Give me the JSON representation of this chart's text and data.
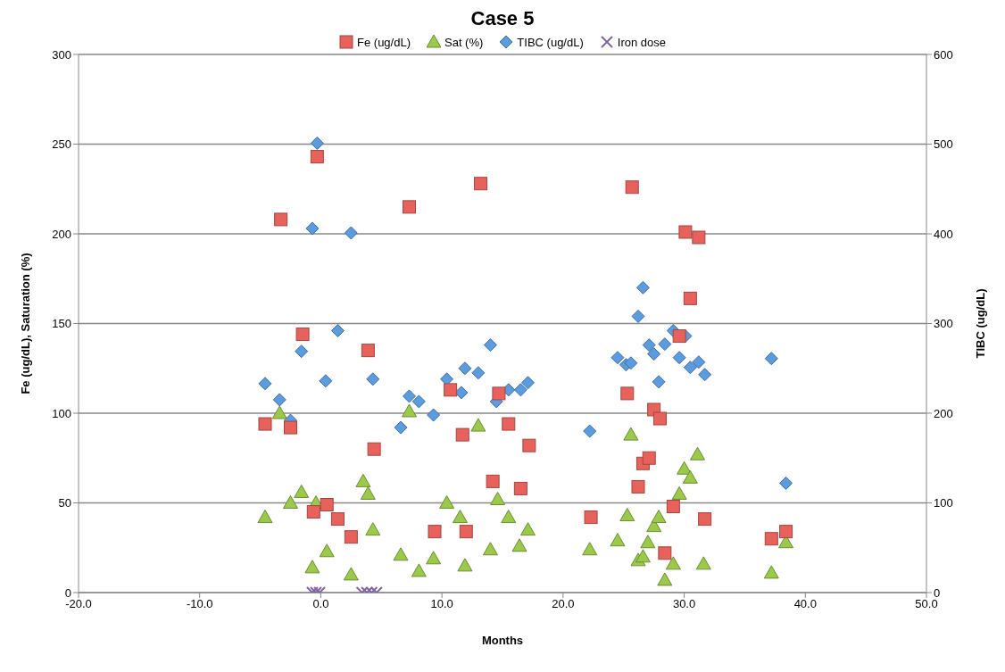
{
  "chart_data": {
    "type": "scatter",
    "title": "Case 5",
    "xlabel": "Months",
    "ylabel": "Fe (ug/dL), Saturation (%)",
    "y2label": "TIBC (ug/dL)",
    "xlim": [
      -20,
      50
    ],
    "xticks": [
      {
        "value": -20,
        "label": "-20.0"
      },
      {
        "value": -10,
        "label": "-10.0"
      },
      {
        "value": 0,
        "label": "0.0"
      },
      {
        "value": 10,
        "label": "10.0"
      },
      {
        "value": 20,
        "label": "20.0"
      },
      {
        "value": 30,
        "label": "30.0"
      },
      {
        "value": 40,
        "label": "40.0"
      },
      {
        "value": 50,
        "label": "50.0"
      }
    ],
    "ylim": [
      0,
      300
    ],
    "yticks": [
      0,
      50,
      100,
      150,
      200,
      250,
      300
    ],
    "y2lim": [
      0,
      600
    ],
    "y2ticks": [
      0,
      100,
      200,
      300,
      400,
      500,
      600
    ],
    "grid": "y",
    "legend": "top",
    "series": [
      {
        "name": "Fe (ug/dL)",
        "color": "#e8625c",
        "marker": "square",
        "x": [
          -4.6,
          -3.3,
          -2.5,
          -1.5,
          -0.6,
          -0.3,
          0.5,
          1.4,
          2.5,
          3.9,
          4.4,
          7.3,
          9.4,
          10.7,
          11.7,
          12.0,
          13.2,
          14.2,
          14.7,
          15.5,
          16.5,
          17.2,
          22.3,
          25.3,
          25.7,
          26.2,
          26.6,
          27.1,
          27.5,
          28.0,
          28.4,
          29.1,
          29.6,
          30.1,
          30.5,
          31.2,
          31.7,
          37.2,
          38.4
        ],
        "values": [
          94,
          208,
          92,
          144,
          45,
          243,
          49,
          41,
          31,
          135,
          80,
          215,
          34,
          113,
          88,
          34,
          228,
          62,
          111,
          94,
          58,
          82,
          42,
          111,
          226,
          59,
          72,
          75,
          102,
          97,
          22,
          48,
          143,
          201,
          164,
          198,
          41,
          30,
          34
        ]
      },
      {
        "name": "Sat (%)",
        "color": "#9bc94a",
        "marker": "triangle",
        "x": [
          -4.6,
          -3.4,
          -2.5,
          -1.6,
          -0.7,
          -0.4,
          0.5,
          2.5,
          3.5,
          3.9,
          4.3,
          6.6,
          7.3,
          8.1,
          9.3,
          10.4,
          11.5,
          11.9,
          13.0,
          14.0,
          14.6,
          15.5,
          16.4,
          17.1,
          22.2,
          24.5,
          25.3,
          25.6,
          26.2,
          26.6,
          27.0,
          27.5,
          27.9,
          28.4,
          29.1,
          29.6,
          30.0,
          30.5,
          31.1,
          31.6,
          37.2,
          38.4
        ],
        "values": [
          42,
          100,
          50,
          56,
          14,
          50,
          23,
          10,
          62,
          55,
          35,
          21,
          101,
          12,
          19,
          50,
          42,
          15,
          93,
          24,
          52,
          42,
          26,
          35,
          24,
          29,
          43,
          88,
          18,
          20,
          28,
          37,
          42,
          7,
          16,
          55,
          69,
          64,
          77,
          16,
          11,
          28
        ]
      },
      {
        "name": "TIBC (ug/dL)",
        "color": "#5b9be0",
        "marker": "diamond",
        "axis": "y2",
        "x": [
          -4.6,
          -3.4,
          -2.5,
          -1.6,
          -0.7,
          -0.3,
          0.4,
          1.4,
          2.5,
          4.3,
          6.6,
          7.3,
          8.1,
          9.3,
          10.4,
          11.6,
          11.9,
          13.0,
          14.0,
          14.5,
          15.5,
          16.5,
          17.1,
          22.2,
          24.5,
          25.2,
          25.6,
          26.2,
          26.6,
          27.1,
          27.5,
          27.9,
          28.4,
          29.1,
          29.6,
          30.1,
          30.5,
          31.2,
          31.7,
          37.2,
          38.4
        ],
        "values": [
          233,
          215,
          192,
          269,
          406,
          501,
          236,
          292,
          401,
          238,
          184,
          219,
          213,
          198,
          238,
          223,
          250,
          245,
          276,
          213,
          226,
          226,
          234,
          180,
          262,
          254,
          256,
          308,
          340,
          276,
          266,
          235,
          277,
          292,
          262,
          286,
          251,
          257,
          243,
          261,
          122
        ]
      },
      {
        "name": "Iron dose",
        "color": "#8064a2",
        "marker": "cross",
        "x": [
          -0.7,
          -0.4,
          -0.1,
          3.4,
          3.8,
          4.2,
          4.6
        ],
        "values": [
          0,
          0,
          0,
          0,
          0,
          0,
          0
        ]
      }
    ]
  }
}
